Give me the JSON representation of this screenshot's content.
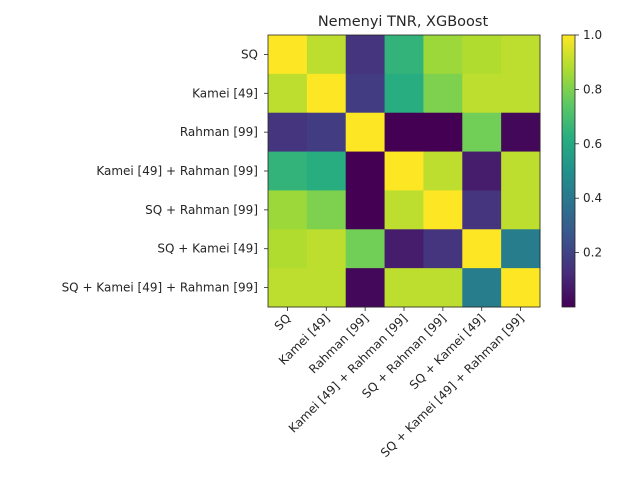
{
  "chart_data": {
    "type": "heatmap",
    "title": "Nemenyi TNR, XGBoost",
    "xlabel": "",
    "ylabel": "",
    "row_labels": [
      "SQ",
      "Kamei [49]",
      "Rahman [99]",
      "Kamei [49] + Rahman [99]",
      "SQ + Rahman [99]",
      "SQ + Kamei [49]",
      "SQ + Kamei [49] + Rahman [99]"
    ],
    "col_labels": [
      "SQ",
      "Kamei [49]",
      "Rahman [99]",
      "Kamei [49] + Rahman [99]",
      "SQ + Rahman [99]",
      "SQ + Kamei [49]",
      "SQ + Kamei [49] + Rahman [99]"
    ],
    "values": [
      [
        1.0,
        0.9,
        0.15,
        0.65,
        0.85,
        0.88,
        0.9
      ],
      [
        0.9,
        1.0,
        0.18,
        0.62,
        0.8,
        0.9,
        0.9
      ],
      [
        0.15,
        0.18,
        1.0,
        0.0,
        0.0,
        0.78,
        0.02
      ],
      [
        0.65,
        0.62,
        0.0,
        1.0,
        0.9,
        0.08,
        0.9
      ],
      [
        0.85,
        0.8,
        0.0,
        0.9,
        1.0,
        0.15,
        0.9
      ],
      [
        0.88,
        0.9,
        0.78,
        0.08,
        0.15,
        1.0,
        0.42
      ],
      [
        0.9,
        0.9,
        0.02,
        0.9,
        0.9,
        0.42,
        1.0
      ]
    ],
    "colormap": "viridis",
    "colorbar": {
      "range": [
        0.0,
        1.0
      ],
      "ticks": [
        0.2,
        0.4,
        0.6,
        0.8,
        1.0
      ],
      "tick_labels": [
        "0.2",
        "0.4",
        "0.6",
        "0.8",
        "1.0"
      ]
    },
    "grid": false
  }
}
